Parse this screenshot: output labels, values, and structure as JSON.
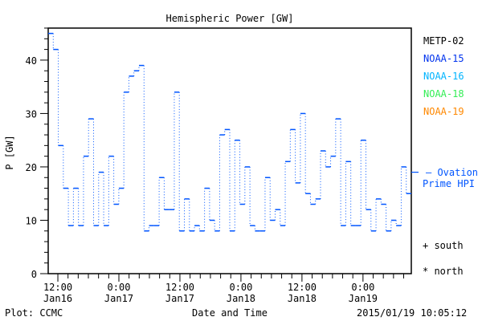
{
  "chart_data": {
    "type": "line",
    "style": "step",
    "title": "Hemispheric Power [GW]",
    "xlabel": "Date and Time",
    "ylabel": "P [GW]",
    "ylim": [
      0,
      46
    ],
    "yticks": [
      0,
      10,
      20,
      30,
      40
    ],
    "xlim_hours_since_jan16_0000": [
      10.1,
      81.5
    ],
    "xticks": [
      {
        "hours": 12,
        "label1": "12:00",
        "label2": "Jan16"
      },
      {
        "hours": 24,
        "label1": "0:00",
        "label2": "Jan17"
      },
      {
        "hours": 36,
        "label1": "12:00",
        "label2": "Jan17"
      },
      {
        "hours": 48,
        "label1": "0:00",
        "label2": "Jan18"
      },
      {
        "hours": 60,
        "label1": "12:00",
        "label2": "Jan18"
      },
      {
        "hours": 72,
        "label1": "0:00",
        "label2": "Jan19"
      }
    ],
    "legend_position": "right",
    "legend": [
      {
        "name": "METP-02",
        "color": "#000000"
      },
      {
        "name": "NOAA-15",
        "color": "#0033ee"
      },
      {
        "name": "NOAA-16",
        "color": "#00b4ff"
      },
      {
        "name": "NOAA-18",
        "color": "#33ee55"
      },
      {
        "name": "NOAA-19",
        "color": "#ff8800"
      }
    ],
    "series": [
      {
        "name": "NOAA-15",
        "color": "#0055ff",
        "values": [
          45,
          42,
          24,
          16,
          9,
          16,
          9,
          22,
          29,
          9,
          19,
          9,
          22,
          13,
          16,
          34,
          37,
          38,
          39,
          8,
          9,
          9,
          18,
          12,
          12,
          34,
          8,
          14,
          8,
          9,
          8,
          16,
          10,
          8,
          26,
          27,
          8,
          25,
          13,
          20,
          9,
          8,
          8,
          18,
          10,
          12,
          9,
          21,
          27,
          17,
          30,
          15,
          13,
          14,
          23,
          20,
          22,
          29,
          9,
          21,
          9,
          9,
          25,
          12,
          8,
          14,
          13,
          8,
          10,
          9,
          20,
          15
        ]
      }
    ],
    "ovation": {
      "value": 19,
      "label1": "— Ovation",
      "label2": "Prime HPI",
      "color": "#0055ff"
    },
    "hemisphere_markers": [
      {
        "label": "+ south"
      },
      {
        "label": "* north"
      }
    ]
  },
  "footer": {
    "credit": "Plot: CCMC",
    "timestamp": "2015/01/19 10:05:12"
  }
}
